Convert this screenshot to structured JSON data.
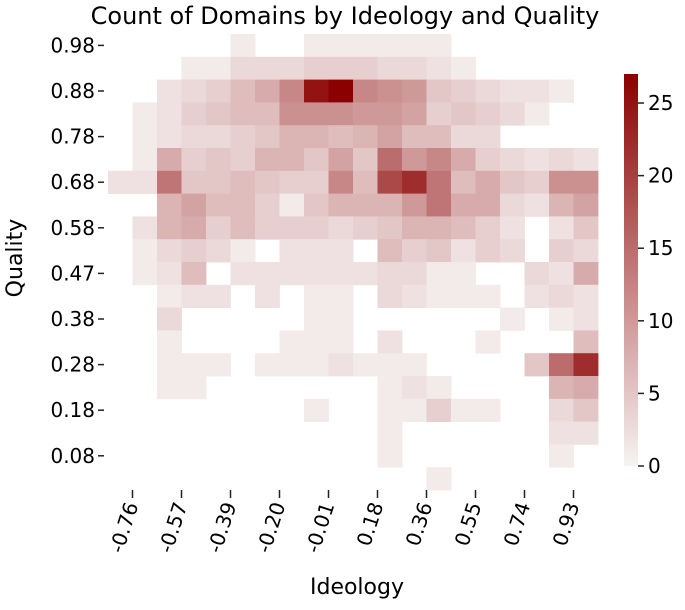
{
  "chart_data": {
    "type": "heatmap",
    "title": "Count of Domains by Ideology and Quality",
    "xlabel": "Ideology",
    "ylabel": "Quality",
    "x_tick_labels": [
      "-0.76",
      "-0.57",
      "-0.39",
      "-0.20",
      "-0.01",
      "0.18",
      "0.36",
      "0.55",
      "0.74",
      "0.93"
    ],
    "y_tick_labels": [
      "0.98",
      "0.88",
      "0.78",
      "0.68",
      "0.58",
      "0.47",
      "0.38",
      "0.28",
      "0.18",
      "0.08"
    ],
    "colorbar": {
      "min": 0,
      "max": 27,
      "ticks": [
        0,
        5,
        10,
        15,
        20,
        25
      ],
      "color_low": "#f7f3f3",
      "color_high": "#8b0000"
    },
    "n_cols": 20,
    "n_rows": 20,
    "grid": false,
    "values": [
      [
        0,
        0,
        0,
        0,
        0,
        1,
        0,
        0,
        1,
        1,
        1,
        1,
        1,
        1,
        0,
        0,
        0,
        0,
        0,
        0
      ],
      [
        0,
        0,
        0,
        1,
        1,
        3,
        3,
        3,
        4,
        4,
        4,
        3,
        3,
        2,
        1,
        0,
        0,
        0,
        0,
        0
      ],
      [
        0,
        0,
        2,
        3,
        4,
        6,
        8,
        12,
        25,
        27,
        12,
        11,
        10,
        5,
        4,
        3,
        2,
        2,
        1,
        0
      ],
      [
        0,
        1,
        2,
        4,
        5,
        6,
        6,
        11,
        11,
        11,
        10,
        10,
        9,
        4,
        5,
        4,
        3,
        1,
        0,
        0
      ],
      [
        0,
        1,
        2,
        3,
        3,
        4,
        5,
        7,
        7,
        6,
        7,
        9,
        6,
        6,
        3,
        3,
        0,
        0,
        0,
        0
      ],
      [
        0,
        1,
        8,
        4,
        5,
        4,
        7,
        7,
        5,
        9,
        5,
        15,
        10,
        12,
        8,
        4,
        3,
        2,
        3,
        2
      ],
      [
        2,
        2,
        14,
        5,
        5,
        6,
        5,
        4,
        4,
        12,
        6,
        19,
        22,
        14,
        6,
        8,
        5,
        4,
        11,
        11
      ],
      [
        0,
        0,
        7,
        9,
        6,
        6,
        4,
        1,
        5,
        7,
        7,
        7,
        10,
        14,
        8,
        8,
        3,
        2,
        7,
        9
      ],
      [
        0,
        2,
        7,
        8,
        4,
        6,
        4,
        4,
        4,
        3,
        4,
        5,
        7,
        7,
        6,
        4,
        2,
        0,
        2,
        5
      ],
      [
        0,
        1,
        3,
        4,
        3,
        1,
        0,
        2,
        2,
        2,
        0,
        6,
        4,
        5,
        2,
        4,
        3,
        0,
        4,
        3
      ],
      [
        0,
        1,
        2,
        6,
        0,
        2,
        2,
        2,
        2,
        2,
        2,
        3,
        3,
        1,
        1,
        0,
        0,
        3,
        2,
        8
      ],
      [
        0,
        0,
        1,
        2,
        2,
        0,
        2,
        0,
        1,
        1,
        0,
        3,
        2,
        1,
        1,
        1,
        0,
        2,
        3,
        2
      ],
      [
        0,
        0,
        3,
        0,
        0,
        0,
        0,
        0,
        1,
        1,
        0,
        0,
        0,
        0,
        0,
        0,
        1,
        0,
        1,
        2
      ],
      [
        0,
        0,
        1,
        0,
        0,
        0,
        0,
        1,
        1,
        1,
        0,
        2,
        0,
        0,
        0,
        1,
        0,
        0,
        0,
        6
      ],
      [
        0,
        0,
        1,
        1,
        1,
        0,
        1,
        1,
        1,
        2,
        1,
        1,
        1,
        0,
        0,
        0,
        0,
        5,
        15,
        22
      ],
      [
        0,
        0,
        1,
        1,
        0,
        0,
        0,
        0,
        0,
        0,
        0,
        1,
        2,
        1,
        0,
        0,
        0,
        0,
        7,
        8
      ],
      [
        0,
        0,
        0,
        0,
        0,
        0,
        0,
        0,
        1,
        0,
        0,
        1,
        1,
        4,
        1,
        1,
        0,
        0,
        3,
        5
      ],
      [
        0,
        0,
        0,
        0,
        0,
        0,
        0,
        0,
        0,
        0,
        0,
        1,
        0,
        0,
        0,
        0,
        0,
        0,
        2,
        2
      ],
      [
        0,
        0,
        0,
        0,
        0,
        0,
        0,
        0,
        0,
        0,
        0,
        1,
        0,
        0,
        0,
        0,
        0,
        0,
        1,
        0
      ],
      [
        0,
        0,
        0,
        0,
        0,
        0,
        0,
        0,
        0,
        0,
        0,
        0,
        0,
        1,
        0,
        0,
        0,
        0,
        0,
        0
      ]
    ]
  }
}
